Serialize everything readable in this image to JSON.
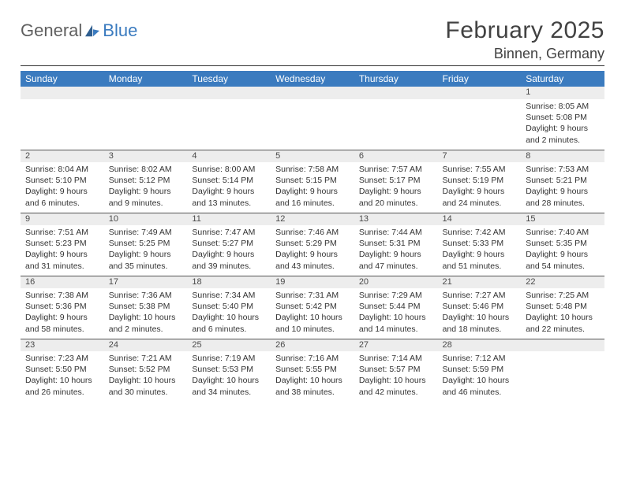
{
  "logo": {
    "text1": "General",
    "text2": "Blue"
  },
  "title": "February 2025",
  "location": "Binnen, Germany",
  "colors": {
    "header_bg": "#3b7bbf",
    "header_text": "#ffffff",
    "daynum_bg": "#ededed",
    "border": "#555555",
    "body_text": "#333333",
    "title_text": "#424242",
    "logo_gray": "#5f5f5f",
    "logo_blue": "#3b7bbf"
  },
  "day_headers": [
    "Sunday",
    "Monday",
    "Tuesday",
    "Wednesday",
    "Thursday",
    "Friday",
    "Saturday"
  ],
  "weeks": [
    {
      "nums": [
        "",
        "",
        "",
        "",
        "",
        "",
        "1"
      ],
      "details": [
        "",
        "",
        "",
        "",
        "",
        "",
        "Sunrise: 8:05 AM\nSunset: 5:08 PM\nDaylight: 9 hours and 2 minutes."
      ]
    },
    {
      "nums": [
        "2",
        "3",
        "4",
        "5",
        "6",
        "7",
        "8"
      ],
      "details": [
        "Sunrise: 8:04 AM\nSunset: 5:10 PM\nDaylight: 9 hours and 6 minutes.",
        "Sunrise: 8:02 AM\nSunset: 5:12 PM\nDaylight: 9 hours and 9 minutes.",
        "Sunrise: 8:00 AM\nSunset: 5:14 PM\nDaylight: 9 hours and 13 minutes.",
        "Sunrise: 7:58 AM\nSunset: 5:15 PM\nDaylight: 9 hours and 16 minutes.",
        "Sunrise: 7:57 AM\nSunset: 5:17 PM\nDaylight: 9 hours and 20 minutes.",
        "Sunrise: 7:55 AM\nSunset: 5:19 PM\nDaylight: 9 hours and 24 minutes.",
        "Sunrise: 7:53 AM\nSunset: 5:21 PM\nDaylight: 9 hours and 28 minutes."
      ]
    },
    {
      "nums": [
        "9",
        "10",
        "11",
        "12",
        "13",
        "14",
        "15"
      ],
      "details": [
        "Sunrise: 7:51 AM\nSunset: 5:23 PM\nDaylight: 9 hours and 31 minutes.",
        "Sunrise: 7:49 AM\nSunset: 5:25 PM\nDaylight: 9 hours and 35 minutes.",
        "Sunrise: 7:47 AM\nSunset: 5:27 PM\nDaylight: 9 hours and 39 minutes.",
        "Sunrise: 7:46 AM\nSunset: 5:29 PM\nDaylight: 9 hours and 43 minutes.",
        "Sunrise: 7:44 AM\nSunset: 5:31 PM\nDaylight: 9 hours and 47 minutes.",
        "Sunrise: 7:42 AM\nSunset: 5:33 PM\nDaylight: 9 hours and 51 minutes.",
        "Sunrise: 7:40 AM\nSunset: 5:35 PM\nDaylight: 9 hours and 54 minutes."
      ]
    },
    {
      "nums": [
        "16",
        "17",
        "18",
        "19",
        "20",
        "21",
        "22"
      ],
      "details": [
        "Sunrise: 7:38 AM\nSunset: 5:36 PM\nDaylight: 9 hours and 58 minutes.",
        "Sunrise: 7:36 AM\nSunset: 5:38 PM\nDaylight: 10 hours and 2 minutes.",
        "Sunrise: 7:34 AM\nSunset: 5:40 PM\nDaylight: 10 hours and 6 minutes.",
        "Sunrise: 7:31 AM\nSunset: 5:42 PM\nDaylight: 10 hours and 10 minutes.",
        "Sunrise: 7:29 AM\nSunset: 5:44 PM\nDaylight: 10 hours and 14 minutes.",
        "Sunrise: 7:27 AM\nSunset: 5:46 PM\nDaylight: 10 hours and 18 minutes.",
        "Sunrise: 7:25 AM\nSunset: 5:48 PM\nDaylight: 10 hours and 22 minutes."
      ]
    },
    {
      "nums": [
        "23",
        "24",
        "25",
        "26",
        "27",
        "28",
        ""
      ],
      "details": [
        "Sunrise: 7:23 AM\nSunset: 5:50 PM\nDaylight: 10 hours and 26 minutes.",
        "Sunrise: 7:21 AM\nSunset: 5:52 PM\nDaylight: 10 hours and 30 minutes.",
        "Sunrise: 7:19 AM\nSunset: 5:53 PM\nDaylight: 10 hours and 34 minutes.",
        "Sunrise: 7:16 AM\nSunset: 5:55 PM\nDaylight: 10 hours and 38 minutes.",
        "Sunrise: 7:14 AM\nSunset: 5:57 PM\nDaylight: 10 hours and 42 minutes.",
        "Sunrise: 7:12 AM\nSunset: 5:59 PM\nDaylight: 10 hours and 46 minutes.",
        ""
      ]
    }
  ]
}
